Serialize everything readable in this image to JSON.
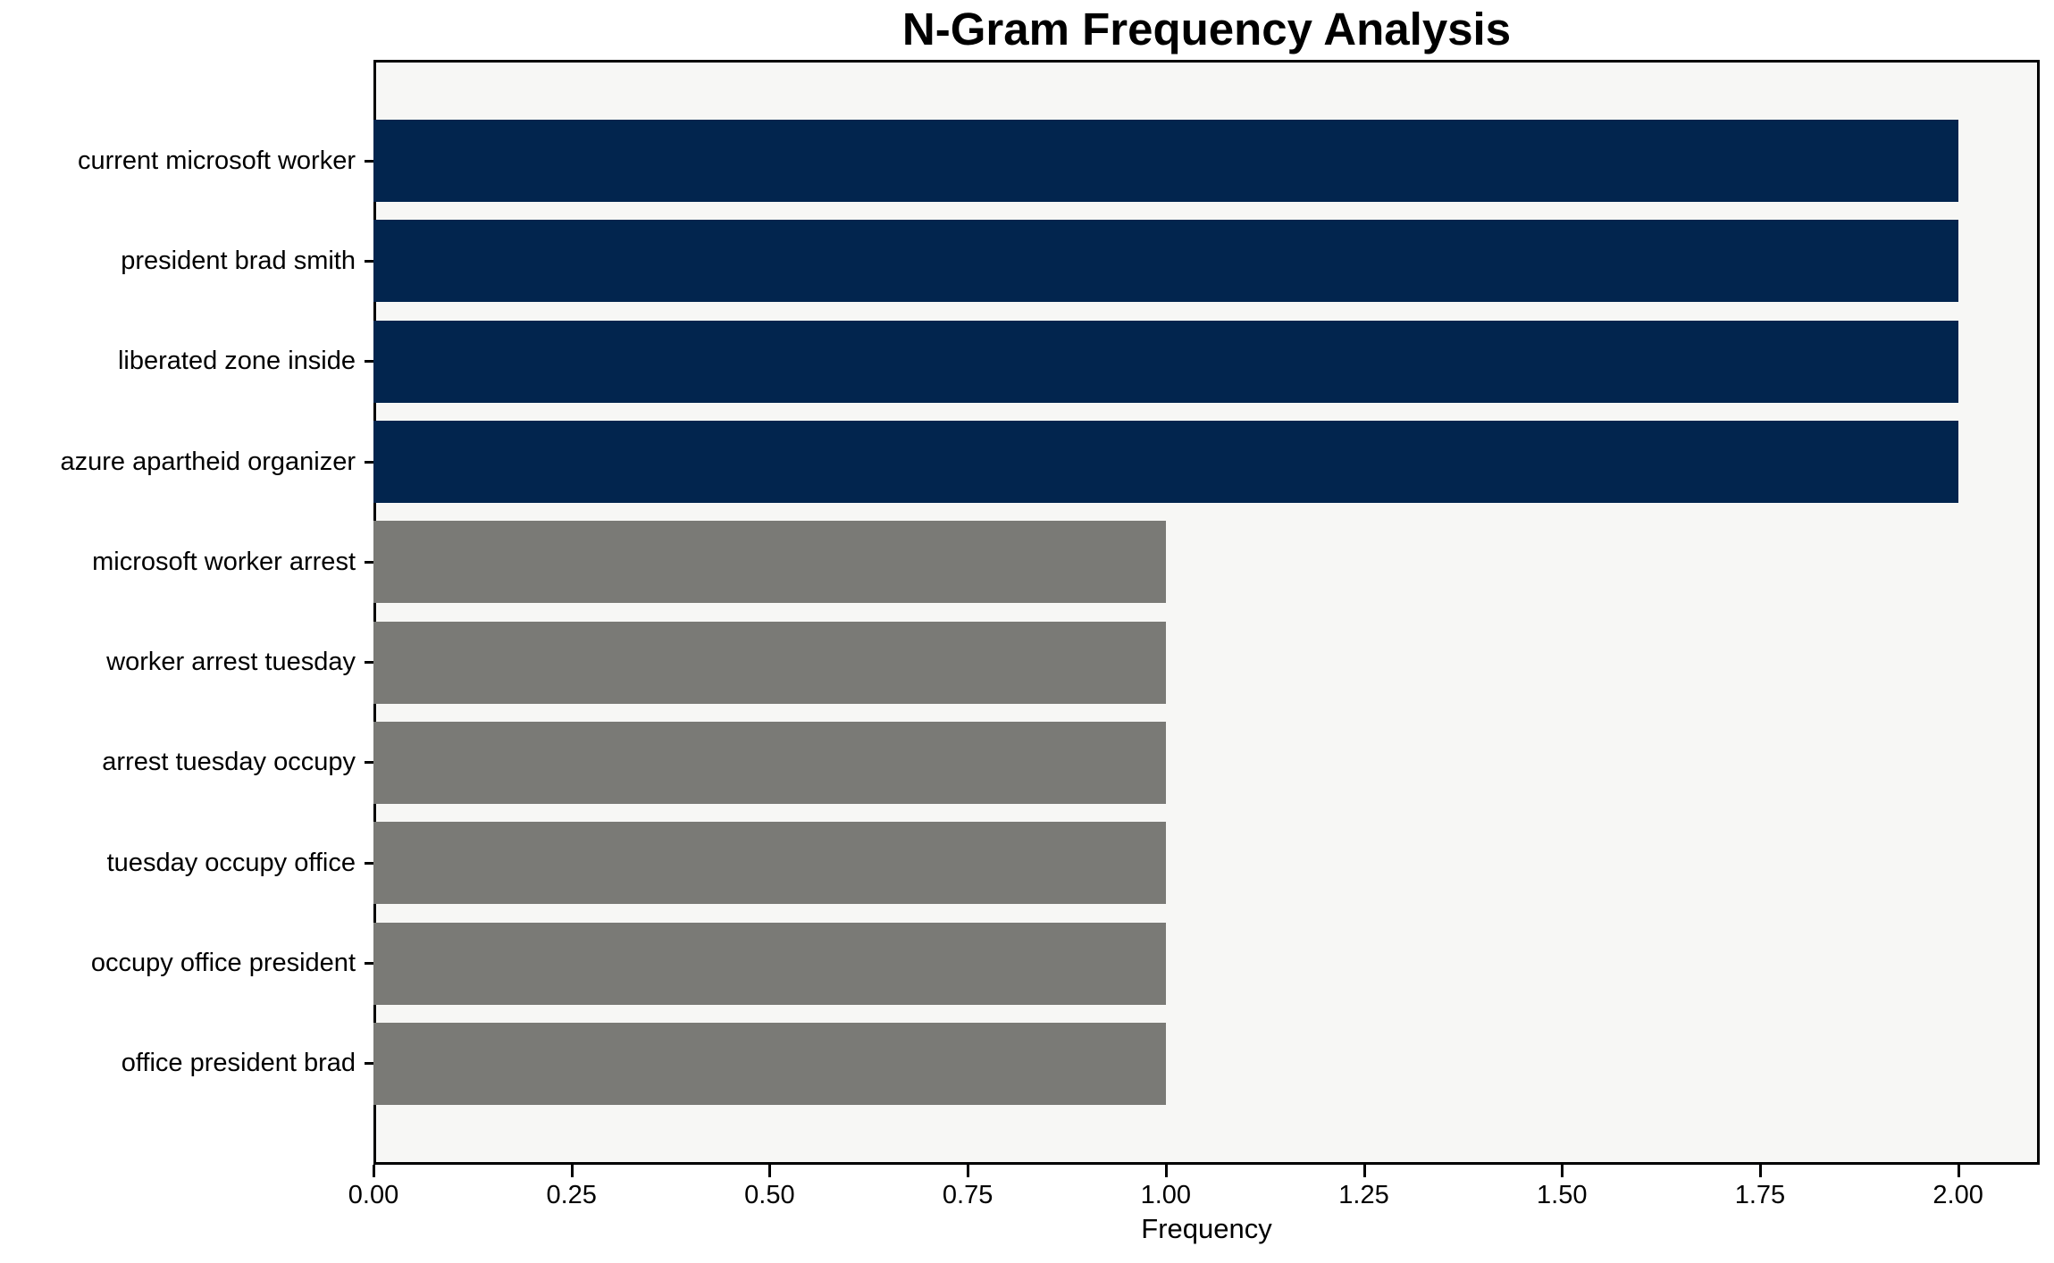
{
  "title": "N-Gram Frequency Analysis",
  "chart_data": {
    "type": "bar",
    "orientation": "horizontal",
    "title": "N-Gram Frequency Analysis",
    "xlabel": "Frequency",
    "ylabel": "",
    "categories": [
      "current microsoft worker",
      "president brad smith",
      "liberated zone inside",
      "azure apartheid organizer",
      "microsoft worker arrest",
      "worker arrest tuesday",
      "arrest tuesday occupy",
      "tuesday occupy office",
      "occupy office president",
      "office president brad"
    ],
    "values": [
      2,
      2,
      2,
      2,
      1,
      1,
      1,
      1,
      1,
      1
    ],
    "bar_colors": [
      "#02254e",
      "#02254e",
      "#02254e",
      "#02254e",
      "#7a7a76",
      "#7a7a76",
      "#7a7a76",
      "#7a7a76",
      "#7a7a76",
      "#7a7a76"
    ],
    "xlim": [
      0,
      2.103
    ],
    "xticks": [
      0,
      0.25,
      0.5,
      0.75,
      1.0,
      1.25,
      1.5,
      1.75,
      2.0
    ],
    "xtick_labels": [
      "0.00",
      "0.25",
      "0.50",
      "0.75",
      "1.00",
      "1.25",
      "1.50",
      "1.75",
      "2.00"
    ],
    "grid": false,
    "legend": null,
    "colors": {
      "high_freq_bar": "#02254e",
      "low_freq_bar": "#7a7a76",
      "plot_background": "#f7f7f5",
      "figure_background": "#ffffff",
      "spine": "#000000",
      "text": "#000000"
    }
  }
}
